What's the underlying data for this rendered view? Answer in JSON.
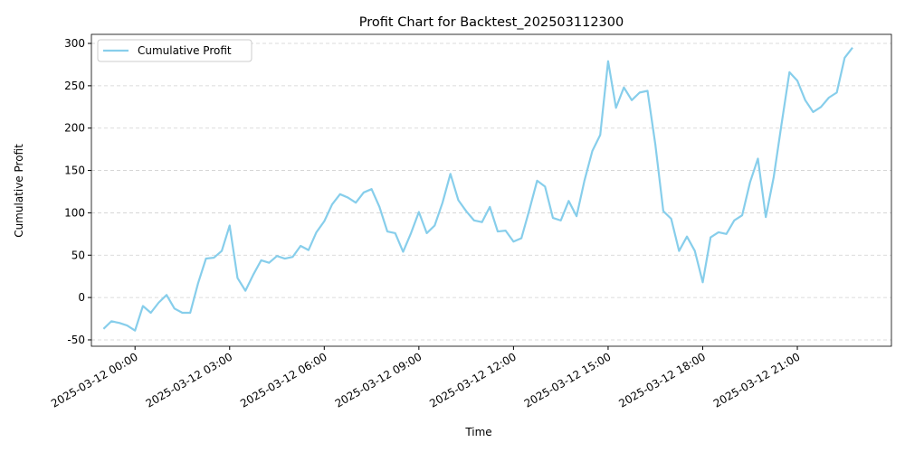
{
  "chart_data": {
    "type": "line",
    "title": "Profit Chart for Backtest_202503112300",
    "xlabel": "Time",
    "ylabel": "Cumulative Profit",
    "x": [
      "2025-03-11 23:00",
      "2025-03-11 23:15",
      "2025-03-11 23:30",
      "2025-03-11 23:45",
      "2025-03-12 00:00",
      "2025-03-12 00:15",
      "2025-03-12 00:30",
      "2025-03-12 00:45",
      "2025-03-12 01:00",
      "2025-03-12 01:15",
      "2025-03-12 01:30",
      "2025-03-12 01:45",
      "2025-03-12 02:00",
      "2025-03-12 02:15",
      "2025-03-12 02:30",
      "2025-03-12 02:45",
      "2025-03-12 03:00",
      "2025-03-12 03:15",
      "2025-03-12 03:30",
      "2025-03-12 03:45",
      "2025-03-12 04:00",
      "2025-03-12 04:15",
      "2025-03-12 04:30",
      "2025-03-12 04:45",
      "2025-03-12 05:00",
      "2025-03-12 05:15",
      "2025-03-12 05:30",
      "2025-03-12 05:45",
      "2025-03-12 06:00",
      "2025-03-12 06:15",
      "2025-03-12 06:30",
      "2025-03-12 06:45",
      "2025-03-12 07:00",
      "2025-03-12 07:15",
      "2025-03-12 07:30",
      "2025-03-12 07:45",
      "2025-03-12 08:00",
      "2025-03-12 08:15",
      "2025-03-12 08:30",
      "2025-03-12 08:45",
      "2025-03-12 09:00",
      "2025-03-12 09:15",
      "2025-03-12 09:30",
      "2025-03-12 09:45",
      "2025-03-12 10:00",
      "2025-03-12 10:15",
      "2025-03-12 10:30",
      "2025-03-12 10:45",
      "2025-03-12 11:00",
      "2025-03-12 11:15",
      "2025-03-12 11:30",
      "2025-03-12 11:45",
      "2025-03-12 12:00",
      "2025-03-12 12:15",
      "2025-03-12 12:30",
      "2025-03-12 12:45",
      "2025-03-12 13:00",
      "2025-03-12 13:15",
      "2025-03-12 13:30",
      "2025-03-12 13:45",
      "2025-03-12 14:00",
      "2025-03-12 14:15",
      "2025-03-12 14:30",
      "2025-03-12 14:45",
      "2025-03-12 15:00",
      "2025-03-12 15:15",
      "2025-03-12 15:30",
      "2025-03-12 15:45",
      "2025-03-12 16:00",
      "2025-03-12 16:15",
      "2025-03-12 16:30",
      "2025-03-12 16:45",
      "2025-03-12 17:00",
      "2025-03-12 17:15",
      "2025-03-12 17:30",
      "2025-03-12 17:45",
      "2025-03-12 18:00",
      "2025-03-12 18:15",
      "2025-03-12 18:30",
      "2025-03-12 18:45",
      "2025-03-12 19:00",
      "2025-03-12 19:15",
      "2025-03-12 19:30",
      "2025-03-12 19:45",
      "2025-03-12 20:00",
      "2025-03-12 20:15",
      "2025-03-12 20:30",
      "2025-03-12 20:45",
      "2025-03-12 21:00",
      "2025-03-12 21:15",
      "2025-03-12 21:30",
      "2025-03-12 21:45",
      "2025-03-12 22:00",
      "2025-03-12 22:15",
      "2025-03-12 22:30",
      "2025-03-12 22:45"
    ],
    "series": [
      {
        "name": "Cumulative Profit",
        "color": "#87ceeb",
        "values": [
          -37,
          -28,
          -30,
          -33,
          -39,
          -10,
          -18,
          -6,
          3,
          -13,
          -18,
          -18,
          17,
          46,
          47,
          55,
          85,
          23,
          8,
          27,
          44,
          41,
          49,
          46,
          48,
          61,
          56,
          77,
          90,
          110,
          122,
          118,
          112,
          124,
          128,
          107,
          78,
          76,
          54,
          76,
          101,
          76,
          85,
          112,
          146,
          115,
          102,
          91,
          89,
          107,
          78,
          79,
          66,
          70,
          103,
          138,
          131,
          94,
          91,
          114,
          96,
          138,
          173,
          192,
          279,
          224,
          248,
          233,
          242,
          244,
          180,
          102,
          93,
          55,
          72,
          55,
          18,
          71,
          77,
          75,
          91,
          97,
          136,
          164,
          95,
          142,
          205,
          266,
          256,
          233,
          219,
          225,
          236,
          242,
          283,
          295
        ]
      }
    ],
    "xlim": [
      "2025-03-11 22:37",
      "2025-03-12 23:59"
    ],
    "xticks": [
      "2025-03-12 00:00",
      "2025-03-12 03:00",
      "2025-03-12 06:00",
      "2025-03-12 09:00",
      "2025-03-12 12:00",
      "2025-03-12 15:00",
      "2025-03-12 18:00",
      "2025-03-12 21:00"
    ],
    "ylim": [
      -57.5,
      310.7
    ],
    "yticks": [
      -50,
      0,
      50,
      100,
      150,
      200,
      250,
      300
    ],
    "grid": "y",
    "legend": "upper left"
  }
}
